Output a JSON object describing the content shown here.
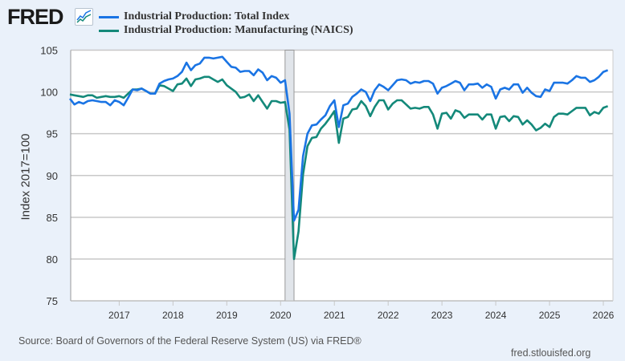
{
  "header": {
    "logo_text": "FRED",
    "logo_icon": "line-chart-icon"
  },
  "colors": {
    "total": "#1a74e4",
    "manufacturing": "#14897a",
    "background": "#eaf1fa",
    "recession": "#e1e5ea"
  },
  "footer": {
    "source": "Source: Board of Governors of the Federal Reserve System (US) via FRED®",
    "site": "fred.stlouisfed.org"
  },
  "chart_data": {
    "type": "line",
    "title": "",
    "xlabel": "",
    "ylabel": "Index 2017=100",
    "x_start": "2016-02",
    "frequency": "monthly",
    "ylim": [
      75,
      105
    ],
    "yticks": [
      "75",
      "80",
      "85",
      "90",
      "95",
      "100",
      "105"
    ],
    "xticks": [
      "2017",
      "2018",
      "2019",
      "2020",
      "2021",
      "2022",
      "2023",
      "2024",
      "2025",
      "2026"
    ],
    "grid": true,
    "legend_position": "top",
    "recessions": [
      {
        "start": "2020-02",
        "end": "2020-04"
      }
    ],
    "series": [
      {
        "name": "Industrial Production: Total Index",
        "color": "#1a74e4",
        "values": [
          99.2,
          98.5,
          98.8,
          98.6,
          98.9,
          99.0,
          98.9,
          98.8,
          98.8,
          98.4,
          99.0,
          98.8,
          98.4,
          99.3,
          100.3,
          100.2,
          100.4,
          100.1,
          99.8,
          99.8,
          101.0,
          101.3,
          101.5,
          101.6,
          101.9,
          102.4,
          103.5,
          102.6,
          103.2,
          103.4,
          104.1,
          104.1,
          104.0,
          104.1,
          104.2,
          103.6,
          103.0,
          102.9,
          102.4,
          102.5,
          102.5,
          102.0,
          102.7,
          102.3,
          101.4,
          101.9,
          101.7,
          101.1,
          101.4,
          97.4,
          84.6,
          85.9,
          92.3,
          95.0,
          96.0,
          96.1,
          96.7,
          97.2,
          98.3,
          99.0,
          95.8,
          98.4,
          98.6,
          99.4,
          99.8,
          100.3,
          100.0,
          98.9,
          100.2,
          100.9,
          100.6,
          100.2,
          100.8,
          101.4,
          101.5,
          101.4,
          101.0,
          101.2,
          101.1,
          101.3,
          101.3,
          101.0,
          99.8,
          100.5,
          100.7,
          101.0,
          101.3,
          101.1,
          100.2,
          100.9,
          100.9,
          101.0,
          100.5,
          100.9,
          100.6,
          99.2,
          100.3,
          100.5,
          100.3,
          100.9,
          100.9,
          99.9,
          100.5,
          99.9,
          99.5,
          99.4,
          100.3,
          100.1,
          101.1,
          101.1,
          101.1,
          101.0,
          101.4,
          101.9,
          101.7,
          101.7,
          101.2,
          101.4,
          101.8,
          102.4,
          102.6
        ]
      },
      {
        "name": "Industrial Production: Manufacturing (NAICS)",
        "color": "#14897a",
        "values": [
          99.7,
          99.6,
          99.5,
          99.4,
          99.6,
          99.6,
          99.3,
          99.4,
          99.5,
          99.4,
          99.4,
          99.5,
          99.3,
          99.8,
          100.3,
          100.3,
          100.4,
          100.1,
          99.8,
          99.8,
          100.8,
          100.7,
          100.4,
          100.1,
          100.9,
          101.0,
          101.6,
          100.7,
          101.5,
          101.6,
          101.8,
          101.8,
          101.5,
          101.2,
          101.5,
          100.8,
          100.4,
          100.0,
          99.3,
          99.4,
          99.7,
          98.9,
          99.6,
          98.8,
          98.0,
          98.9,
          98.9,
          98.7,
          98.8,
          95.5,
          80.0,
          83.3,
          90.1,
          93.5,
          94.5,
          94.6,
          95.6,
          96.2,
          96.9,
          97.7,
          93.9,
          96.8,
          97.0,
          97.9,
          98.0,
          98.9,
          98.3,
          97.1,
          98.2,
          99.0,
          99.0,
          97.9,
          98.6,
          99.0,
          99.0,
          98.5,
          98.0,
          98.1,
          98.0,
          98.2,
          98.2,
          97.3,
          95.6,
          97.4,
          97.5,
          96.8,
          97.8,
          97.6,
          96.9,
          97.3,
          97.3,
          97.3,
          96.7,
          97.3,
          97.3,
          95.6,
          97.0,
          97.1,
          96.5,
          97.1,
          97.0,
          96.1,
          96.6,
          96.1,
          95.4,
          95.7,
          96.2,
          95.8,
          97.0,
          97.4,
          97.4,
          97.3,
          97.7,
          98.1,
          98.1,
          98.1,
          97.2,
          97.6,
          97.4,
          98.1,
          98.3
        ]
      }
    ]
  }
}
